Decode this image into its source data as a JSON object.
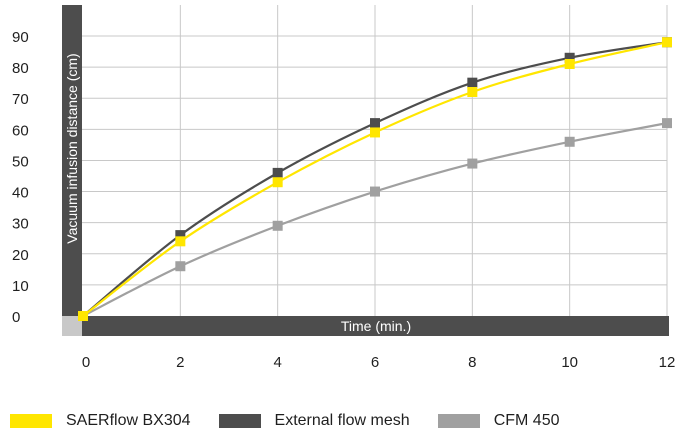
{
  "chart_data": {
    "type": "line",
    "xlabel": "Time (min.)",
    "ylabel": "Vacuum infusion distance (cm)",
    "x": [
      0,
      2,
      4,
      6,
      8,
      10,
      12
    ],
    "xlim": [
      0,
      12
    ],
    "ylim": [
      0,
      90
    ],
    "y_ticks": [
      "0",
      "10",
      "20",
      "30",
      "40",
      "50",
      "60",
      "70",
      "80",
      "90"
    ],
    "x_ticks": [
      "0",
      "2",
      "4",
      "6",
      "8",
      "10",
      "12"
    ],
    "grid": "vertical",
    "legend_placement": "bottom",
    "series": [
      {
        "name": "External flow mesh",
        "color": "#4d4d4d",
        "values": [
          0,
          26,
          46,
          62,
          75,
          83,
          88
        ]
      },
      {
        "name": "SAERflow BX304",
        "color": "#ffe600",
        "values": [
          0,
          24,
          43,
          59,
          72,
          81,
          88
        ]
      },
      {
        "name": "CFM 450",
        "color": "#a0a0a0",
        "values": [
          0,
          16,
          29,
          40,
          49,
          56,
          62
        ]
      }
    ],
    "legend_order": [
      1,
      0,
      2
    ]
  },
  "colors": {
    "axis_band": "#4d4d4d",
    "corner_block": "#c8c8c8",
    "gridline": "#c8c8c8"
  }
}
